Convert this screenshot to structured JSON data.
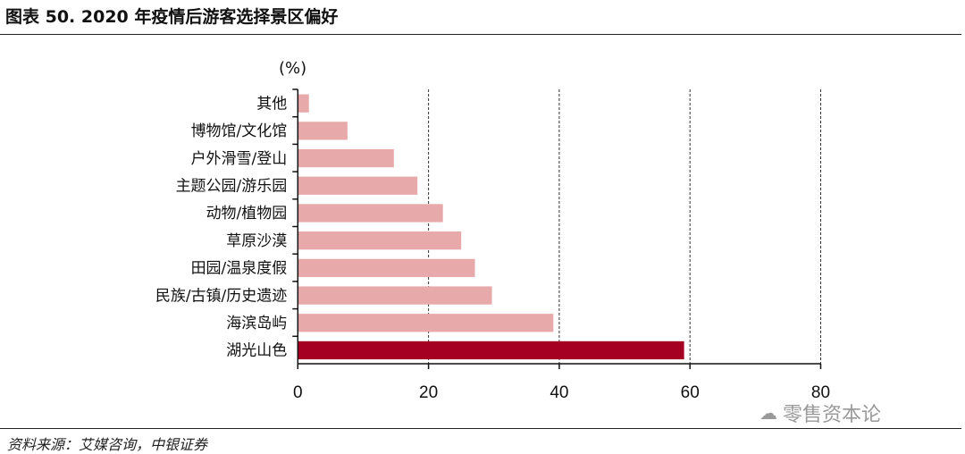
{
  "header": {
    "title": "图表 50. 2020 年疫情后游客选择景区偏好"
  },
  "footer": {
    "source": "资料来源：艾媒咨询，中银证券",
    "watermark": "零售资本论"
  },
  "chart_data": {
    "type": "bar",
    "orientation": "horizontal",
    "title": "",
    "unit_label": "(%)",
    "categories": [
      "其他",
      "博物馆/文化馆",
      "户外滑雪/登山",
      "主题公园/游乐园",
      "动物/植物园",
      "草原沙漠",
      "田园/温泉度假",
      "民族/古镇/历史遗迹",
      "海滨岛屿",
      "湖光山色"
    ],
    "values": [
      1.7,
      7.6,
      14.7,
      18.3,
      22.2,
      25.0,
      27.1,
      29.7,
      39.1,
      59.1
    ],
    "xlim": [
      0,
      80
    ],
    "xticks": [
      0,
      20,
      40,
      60,
      80
    ],
    "grid": "vertical dashed",
    "colors": {
      "default": "#e8a9aa",
      "highlight": "#a50021",
      "highlight_category": "湖光山色"
    }
  }
}
